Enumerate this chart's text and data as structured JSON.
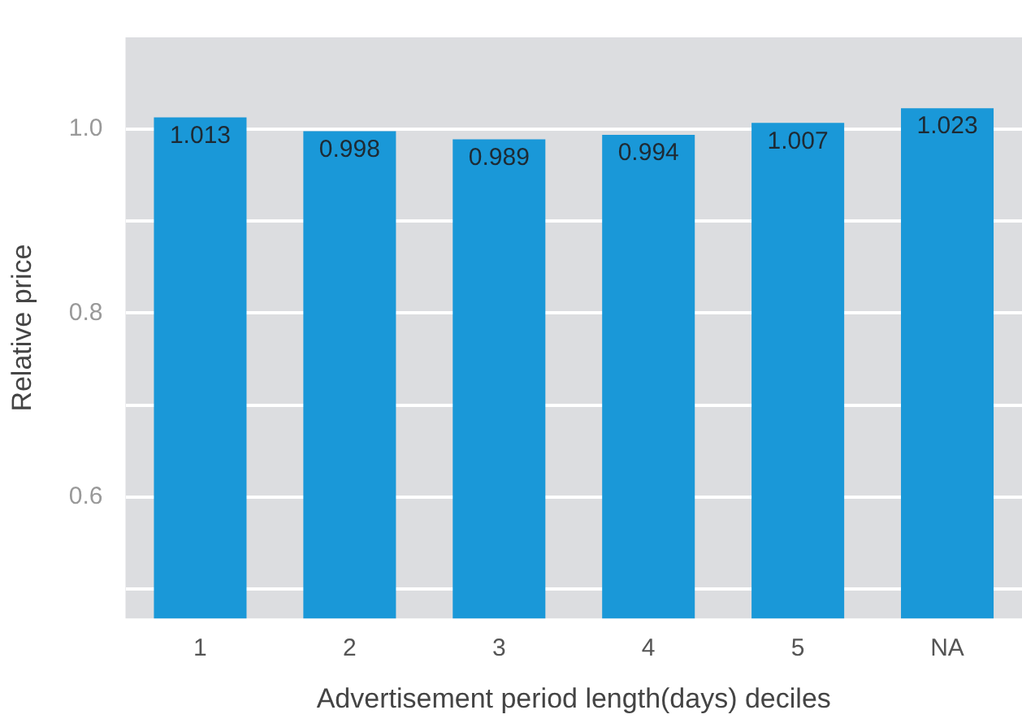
{
  "chart_data": {
    "type": "bar",
    "xlabel": "Advertisement period length(days) deciles",
    "ylabel": "Relative price",
    "categories": [
      "1",
      "2",
      "3",
      "4",
      "5",
      "NA"
    ],
    "values": [
      1.013,
      0.998,
      0.989,
      0.994,
      1.007,
      1.023
    ],
    "color": "#1a98d8",
    "ylim": [
      0.468,
      1.1
    ],
    "yticks": [
      {
        "value": 0.5,
        "label": null
      },
      {
        "value": 0.6,
        "label": "0.6"
      },
      {
        "value": 0.7,
        "label": null
      },
      {
        "value": 0.8,
        "label": "0.8"
      },
      {
        "value": 0.9,
        "label": null
      },
      {
        "value": 1.0,
        "label": "1.0"
      }
    ],
    "grid": "y",
    "legend": false,
    "data_labels": true
  }
}
